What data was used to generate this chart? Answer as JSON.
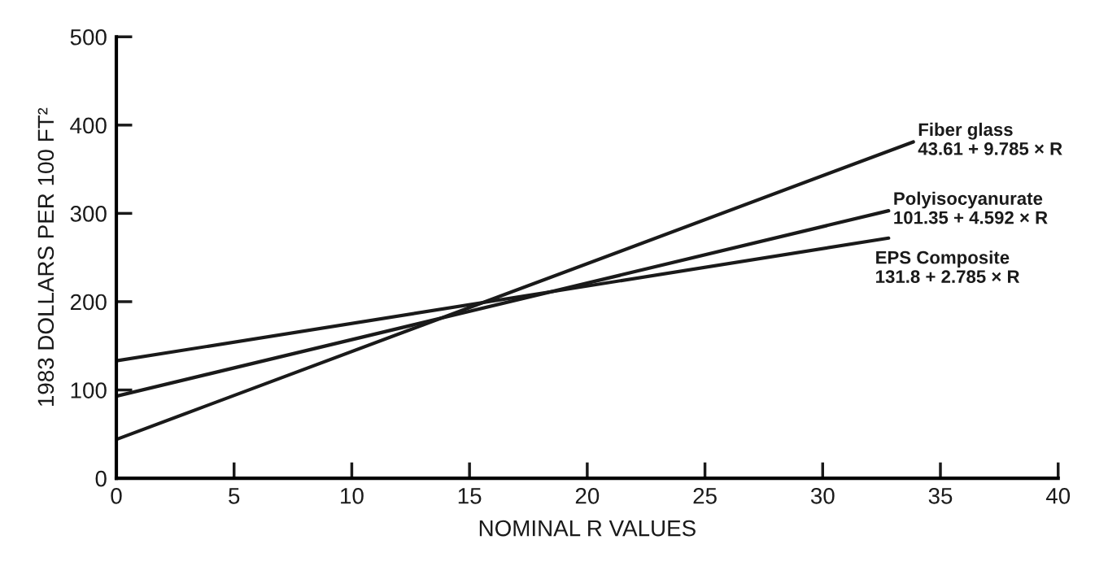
{
  "chart_data": {
    "type": "line",
    "xlabel": "NOMINAL R VALUES",
    "ylabel": "1983 DOLLARS PER 100 FT²",
    "xlim": [
      0,
      40
    ],
    "xticks": [
      0,
      5,
      10,
      15,
      20,
      25,
      30,
      35,
      40
    ],
    "ylim": [
      0,
      500
    ],
    "yticks": [
      0,
      100,
      200,
      300,
      400,
      500
    ],
    "grid": false,
    "legend": false,
    "marker": "none",
    "line_style": "solid",
    "series": [
      {
        "name": "Fiber glass",
        "color": "#1a1a1a",
        "x": [
          0,
          33.85
        ],
        "values": [
          44,
          381
        ]
      },
      {
        "name": "Polyisocyanurate",
        "color": "#1a1a1a",
        "x": [
          0,
          32.8
        ],
        "values": [
          93,
          303
        ]
      },
      {
        "name": "EPS Composite",
        "color": "#1a1a1a",
        "x": [
          0,
          32.8
        ],
        "values": [
          133,
          272
        ]
      }
    ],
    "annotations": [
      "43.61 + 9.785 × R",
      "101.35 + 4.592 × R",
      "131.8 + 2.785 × R"
    ]
  }
}
